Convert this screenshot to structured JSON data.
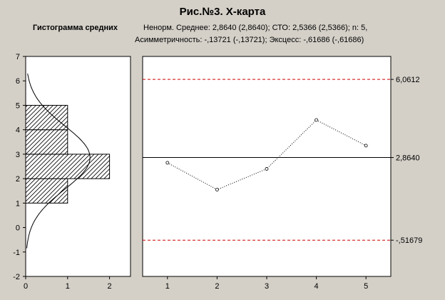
{
  "title": "Рис.№3. Х-карта",
  "histogram_title": "Гистограмма средних",
  "stats_line1": "Ненорм. Среднее: 2,8640 (2,8640); СТО: 2,5366 (2,5366); n: 5,",
  "stats_line2": "Асимметричность: -,13721 (-,13721); Эксцесс: -,61686 (-,61686)",
  "colors": {
    "background": "#d4d0c8",
    "plot_background": "#ffffff",
    "control_limit": "#cc0000",
    "center_line": "#000000",
    "series_line": "#000000"
  },
  "chart_data": [
    {
      "type": "histogram",
      "orientation": "horizontal",
      "title": "Гистограмма средних",
      "bins": [
        {
          "from": 1,
          "to": 2,
          "count": 1
        },
        {
          "from": 2,
          "to": 3,
          "count": 2
        },
        {
          "from": 3,
          "to": 4,
          "count": 1
        },
        {
          "from": 4,
          "to": 5,
          "count": 1
        }
      ],
      "normal_curve": {
        "mean": 2.864,
        "sd": 1.3
      },
      "xlim": [
        0,
        2.5
      ],
      "ylim": [
        -2,
        7
      ],
      "xticks": [
        0,
        1,
        2
      ],
      "yticks": [
        -2,
        -1,
        0,
        1,
        2,
        3,
        4,
        5,
        6,
        7
      ],
      "xtick_labels": [
        "0",
        "1",
        "2"
      ],
      "ytick_labels": [
        "-2",
        "-1",
        "0",
        "1",
        "2",
        "3",
        "4",
        "5",
        "6",
        "7"
      ]
    },
    {
      "type": "line",
      "x": [
        1,
        2,
        3,
        4,
        5
      ],
      "values": [
        2.65,
        1.55,
        2.4,
        4.4,
        3.35
      ],
      "xticks": [
        1,
        2,
        3,
        4,
        5
      ],
      "xtick_labels": [
        "1",
        "2",
        "3",
        "4",
        "5"
      ],
      "xlim": [
        0.5,
        5.5
      ],
      "ylim": [
        -2,
        7
      ],
      "ucl": 6.0612,
      "center": 2.864,
      "lcl": -0.51679,
      "ucl_label": "6,0612",
      "center_label": "2,8640",
      "lcl_label": "-,51679"
    }
  ]
}
